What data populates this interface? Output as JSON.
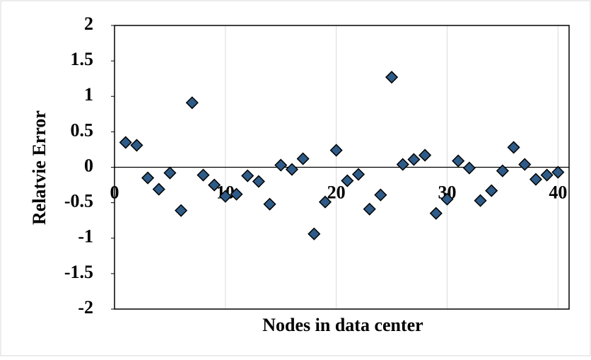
{
  "chart_data": {
    "type": "scatter",
    "x_label": "Nodes in data center",
    "y_label": "Relatvie Error",
    "x": [
      1,
      2,
      3,
      4,
      5,
      6,
      7,
      8,
      9,
      10,
      11,
      12,
      13,
      14,
      15,
      16,
      17,
      18,
      19,
      20,
      21,
      22,
      23,
      24,
      25,
      26,
      27,
      28,
      29,
      30,
      31,
      32,
      33,
      34,
      35,
      36,
      37,
      38,
      39,
      40
    ],
    "values": [
      0.35,
      0.31,
      -0.15,
      -0.31,
      -0.08,
      -0.61,
      0.91,
      -0.11,
      -0.25,
      -0.41,
      -0.38,
      -0.12,
      -0.2,
      -0.52,
      0.03,
      -0.03,
      0.12,
      -0.94,
      -0.49,
      0.24,
      -0.19,
      -0.1,
      -0.59,
      -0.39,
      1.27,
      0.04,
      0.11,
      0.17,
      -0.65,
      -0.45,
      0.09,
      -0.01,
      -0.47,
      -0.33,
      -0.05,
      0.28,
      0.04,
      -0.17,
      -0.11,
      -0.07
    ],
    "color": "#2e5b87",
    "xlim": [
      0,
      41
    ],
    "xticks": [
      0,
      10,
      20,
      30,
      40
    ],
    "ylim": [
      -2,
      2
    ],
    "yticks": [
      -2,
      -1.5,
      -1,
      -0.5,
      0,
      0.5,
      1,
      1.5,
      2
    ],
    "grid": true
  }
}
